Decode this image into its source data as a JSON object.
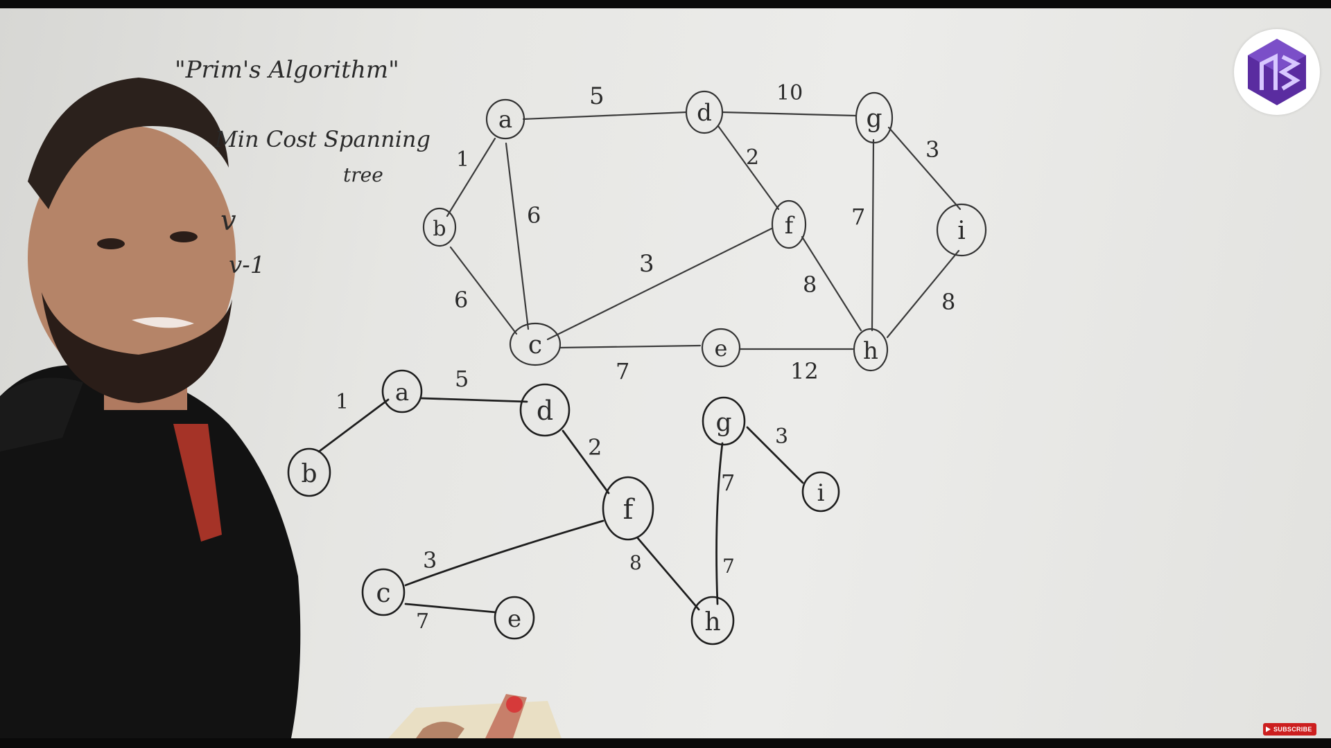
{
  "board": {
    "title": "\"Prim's Algorithm\"",
    "subtitle_line1": "Min Cost Spanning",
    "subtitle_line2": "tree",
    "note_v": "v",
    "note_v_minus_1": "v-1"
  },
  "graph": {
    "nodes": {
      "a": "a",
      "b": "b",
      "c": "c",
      "d": "d",
      "e": "e",
      "f": "f",
      "g": "g",
      "h": "h",
      "i": "i"
    },
    "weights": {
      "ab": "1",
      "ac": "6",
      "ad": "5",
      "bc": "6",
      "cf": "3",
      "ce": "7",
      "df": "2",
      "dg": "10",
      "eh": "12",
      "fh": "8",
      "gh": "7",
      "gi": "3",
      "hi": "8"
    }
  },
  "mst": {
    "nodes": {
      "a": "a",
      "b": "b",
      "c": "c",
      "d": "d",
      "e": "e",
      "f": "f",
      "g": "g",
      "h": "h",
      "i": "i"
    },
    "weights": {
      "ab": "1",
      "ad": "5",
      "df": "2",
      "fc": "3",
      "ce": "7",
      "fh": "8",
      "gi": "3",
      "gh": "7",
      "h7": "7"
    }
  },
  "badge": {
    "subscribe_label": "SUBSCRIBE"
  },
  "colors": {
    "logo_purple": "#5a2ca0",
    "logo_light": "#a07ae0",
    "subscribe_red": "#cc1f1f"
  }
}
